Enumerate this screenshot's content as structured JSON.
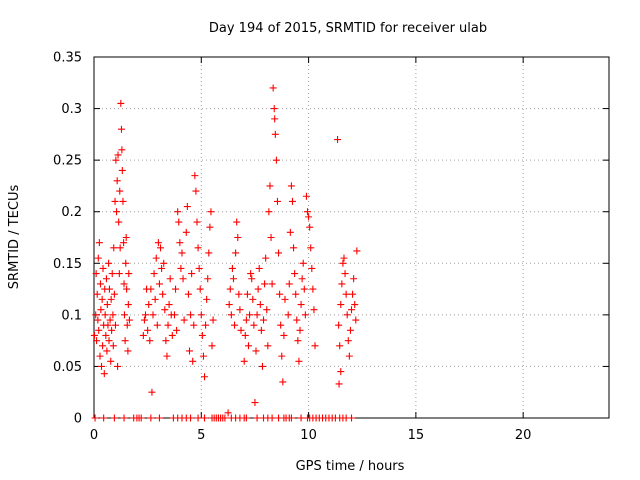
{
  "chart_data": {
    "type": "scatter",
    "title": "Day 194 of 2015, SRMTID for receiver ulab",
    "xlabel": "GPS time / hours",
    "ylabel": "SRMTID / TECUs",
    "xlim": [
      0,
      24
    ],
    "ylim": [
      0,
      0.35
    ],
    "xticks": [
      0,
      5,
      10,
      15,
      20
    ],
    "yticks": [
      0,
      0.05,
      0.1,
      0.15,
      0.2,
      0.25,
      0.3,
      0.35
    ],
    "xtick_labels": [
      "0",
      "5",
      "10",
      "15",
      "20"
    ],
    "ytick_labels": [
      "0",
      "0.05",
      "0.1",
      "0.15",
      "0.2",
      "0.25",
      "0.3",
      "0.35"
    ],
    "grid": true,
    "marker": "+",
    "color": "#ff0000",
    "series": [
      {
        "name": "SRMTID",
        "points": [
          [
            0.02,
            0.08
          ],
          [
            0.05,
            0.0
          ],
          [
            0.08,
            0.1
          ],
          [
            0.1,
            0.14
          ],
          [
            0.12,
            0.075
          ],
          [
            0.15,
            0.12
          ],
          [
            0.18,
            0.095
          ],
          [
            0.2,
            0.155
          ],
          [
            0.22,
            0.085
          ],
          [
            0.25,
            0.17
          ],
          [
            0.28,
            0.06
          ],
          [
            0.3,
            0.13
          ],
          [
            0.32,
            0.105
          ],
          [
            0.35,
            0.05
          ],
          [
            0.38,
            0.115
          ],
          [
            0.4,
            0.07
          ],
          [
            0.42,
            0.145
          ],
          [
            0.45,
            0.09
          ],
          [
            0.48,
            0.043
          ],
          [
            0.5,
            0.125
          ],
          [
            0.52,
            0.1
          ],
          [
            0.55,
            0.08
          ],
          [
            0.58,
            0.135
          ],
          [
            0.6,
            0.065
          ],
          [
            0.62,
            0.11
          ],
          [
            0.65,
            0.09
          ],
          [
            0.68,
            0.15
          ],
          [
            0.7,
            0.075
          ],
          [
            0.72,
            0.125
          ],
          [
            0.75,
            0.095
          ],
          [
            0.78,
            0.055
          ],
          [
            0.8,
            0.115
          ],
          [
            0.82,
            0.085
          ],
          [
            0.85,
            0.14
          ],
          [
            0.88,
            0.1
          ],
          [
            0.9,
            0.07
          ],
          [
            0.92,
            0.165
          ],
          [
            0.95,
            0.12
          ],
          [
            0.98,
            0.21
          ],
          [
            1.0,
            0.09
          ],
          [
            1.02,
            0.25
          ],
          [
            1.05,
            0.2
          ],
          [
            1.08,
            0.23
          ],
          [
            1.1,
            0.05
          ],
          [
            1.12,
            0.255
          ],
          [
            1.15,
            0.19
          ],
          [
            1.18,
            0.14
          ],
          [
            1.2,
            0.22
          ],
          [
            1.22,
            0.165
          ],
          [
            1.25,
            0.305
          ],
          [
            1.28,
            0.28
          ],
          [
            1.3,
            0.26
          ],
          [
            1.32,
            0.24
          ],
          [
            1.35,
            0.21
          ],
          [
            1.38,
            0.17
          ],
          [
            1.4,
            0.13
          ],
          [
            1.42,
            0.1
          ],
          [
            1.45,
            0.075
          ],
          [
            1.48,
            0.15
          ],
          [
            1.5,
            0.175
          ],
          [
            1.52,
            0.125
          ],
          [
            1.55,
            0.09
          ],
          [
            1.58,
            0.065
          ],
          [
            1.6,
            0.11
          ],
          [
            1.62,
            0.14
          ],
          [
            1.65,
            0.095
          ],
          [
            0.45,
            0.0
          ],
          [
            0.95,
            0.0
          ],
          [
            1.4,
            0.0
          ],
          [
            1.85,
            0.0
          ],
          [
            2.0,
            0.0
          ],
          [
            2.1,
            0.0
          ],
          [
            2.2,
            0.0
          ],
          [
            2.3,
            0.08
          ],
          [
            2.35,
            0.095
          ],
          [
            2.4,
            0.1
          ],
          [
            2.45,
            0.125
          ],
          [
            2.5,
            0.085
          ],
          [
            2.55,
            0.11
          ],
          [
            2.6,
            0.075
          ],
          [
            2.65,
            0.125
          ],
          [
            2.7,
            0.025
          ],
          [
            2.75,
            0.1
          ],
          [
            2.8,
            0.14
          ],
          [
            2.85,
            0.115
          ],
          [
            2.9,
            0.155
          ],
          [
            2.95,
            0.09
          ],
          [
            3.0,
            0.17
          ],
          [
            3.05,
            0.13
          ],
          [
            3.1,
            0.165
          ],
          [
            3.15,
            0.145
          ],
          [
            3.2,
            0.12
          ],
          [
            3.25,
            0.15
          ],
          [
            3.3,
            0.105
          ],
          [
            3.35,
            0.075
          ],
          [
            3.4,
            0.06
          ],
          [
            3.45,
            0.09
          ],
          [
            3.5,
            0.11
          ],
          [
            3.55,
            0.135
          ],
          [
            3.6,
            0.1
          ],
          [
            3.65,
            0.08
          ],
          [
            2.65,
            0.0
          ],
          [
            3.05,
            0.0
          ],
          [
            3.75,
            0.1
          ],
          [
            3.8,
            0.125
          ],
          [
            3.85,
            0.085
          ],
          [
            3.9,
            0.2
          ],
          [
            3.95,
            0.19
          ],
          [
            4.0,
            0.17
          ],
          [
            4.05,
            0.145
          ],
          [
            4.1,
            0.16
          ],
          [
            4.15,
            0.135
          ],
          [
            4.2,
            0.095
          ],
          [
            4.3,
            0.18
          ],
          [
            4.35,
            0.205
          ],
          [
            4.4,
            0.12
          ],
          [
            4.45,
            0.065
          ],
          [
            4.5,
            0.1
          ],
          [
            4.55,
            0.14
          ],
          [
            4.6,
            0.055
          ],
          [
            4.65,
            0.09
          ],
          [
            4.7,
            0.235
          ],
          [
            4.75,
            0.22
          ],
          [
            4.8,
            0.19
          ],
          [
            4.85,
            0.165
          ],
          [
            4.9,
            0.145
          ],
          [
            4.95,
            0.125
          ],
          [
            5.0,
            0.1
          ],
          [
            5.05,
            0.08
          ],
          [
            5.1,
            0.06
          ],
          [
            5.15,
            0.04
          ],
          [
            5.2,
            0.09
          ],
          [
            5.25,
            0.115
          ],
          [
            5.3,
            0.135
          ],
          [
            5.35,
            0.16
          ],
          [
            5.4,
            0.185
          ],
          [
            5.45,
            0.2
          ],
          [
            5.5,
            0.07
          ],
          [
            5.55,
            0.095
          ],
          [
            3.7,
            0.0
          ],
          [
            3.9,
            0.0
          ],
          [
            4.1,
            0.0
          ],
          [
            4.3,
            0.0
          ],
          [
            4.5,
            0.0
          ],
          [
            4.85,
            0.0
          ],
          [
            5.15,
            0.0
          ],
          [
            5.5,
            0.0
          ],
          [
            5.6,
            0.0
          ],
          [
            5.7,
            0.0
          ],
          [
            5.8,
            0.0
          ],
          [
            5.9,
            0.0
          ],
          [
            6.0,
            0.0
          ],
          [
            6.1,
            0.0
          ],
          [
            6.25,
            0.005
          ],
          [
            6.3,
            0.11
          ],
          [
            6.35,
            0.125
          ],
          [
            6.4,
            0.1
          ],
          [
            6.45,
            0.145
          ],
          [
            6.5,
            0.135
          ],
          [
            6.55,
            0.09
          ],
          [
            6.6,
            0.16
          ],
          [
            6.65,
            0.19
          ],
          [
            6.7,
            0.175
          ],
          [
            6.75,
            0.12
          ],
          [
            6.8,
            0.105
          ],
          [
            6.85,
            0.085
          ],
          [
            6.4,
            0.0
          ],
          [
            6.6,
            0.0
          ],
          [
            6.8,
            0.0
          ],
          [
            7.0,
            0.0
          ],
          [
            7.1,
            0.0
          ],
          [
            7.0,
            0.055
          ],
          [
            7.05,
            0.08
          ],
          [
            7.1,
            0.095
          ],
          [
            7.15,
            0.12
          ],
          [
            7.2,
            0.07
          ],
          [
            7.25,
            0.1
          ],
          [
            7.3,
            0.14
          ],
          [
            7.35,
            0.135
          ],
          [
            7.4,
            0.115
          ],
          [
            7.45,
            0.09
          ],
          [
            7.5,
            0.015
          ],
          [
            7.55,
            0.065
          ],
          [
            7.6,
            0.1
          ],
          [
            7.65,
            0.125
          ],
          [
            7.7,
            0.145
          ],
          [
            7.75,
            0.11
          ],
          [
            7.8,
            0.085
          ],
          [
            7.85,
            0.05
          ],
          [
            7.9,
            0.095
          ],
          [
            7.95,
            0.13
          ],
          [
            8.0,
            0.155
          ],
          [
            8.05,
            0.105
          ],
          [
            8.1,
            0.07
          ],
          [
            8.15,
            0.2
          ],
          [
            8.2,
            0.225
          ],
          [
            8.25,
            0.175
          ],
          [
            8.3,
            0.13
          ],
          [
            8.35,
            0.32
          ],
          [
            8.4,
            0.3
          ],
          [
            8.42,
            0.29
          ],
          [
            8.45,
            0.275
          ],
          [
            8.5,
            0.25
          ],
          [
            8.55,
            0.21
          ],
          [
            8.6,
            0.16
          ],
          [
            8.65,
            0.12
          ],
          [
            8.7,
            0.09
          ],
          [
            8.75,
            0.06
          ],
          [
            8.8,
            0.035
          ],
          [
            8.85,
            0.08
          ],
          [
            8.9,
            0.115
          ],
          [
            7.6,
            0.0
          ],
          [
            7.9,
            0.0
          ],
          [
            8.1,
            0.0
          ],
          [
            8.3,
            0.0
          ],
          [
            8.6,
            0.0
          ],
          [
            8.85,
            0.0
          ],
          [
            8.95,
            0.0
          ],
          [
            9.1,
            0.0
          ],
          [
            9.2,
            0.0
          ],
          [
            9.05,
            0.1
          ],
          [
            9.1,
            0.13
          ],
          [
            9.15,
            0.18
          ],
          [
            9.2,
            0.225
          ],
          [
            9.25,
            0.21
          ],
          [
            9.3,
            0.165
          ],
          [
            9.35,
            0.14
          ],
          [
            9.4,
            0.12
          ],
          [
            9.45,
            0.095
          ],
          [
            9.5,
            0.075
          ],
          [
            9.55,
            0.055
          ],
          [
            9.6,
            0.085
          ],
          [
            9.65,
            0.11
          ],
          [
            9.7,
            0.135
          ],
          [
            9.75,
            0.15
          ],
          [
            9.8,
            0.125
          ],
          [
            9.85,
            0.1
          ],
          [
            9.9,
            0.215
          ],
          [
            9.95,
            0.2
          ],
          [
            10.0,
            0.195
          ],
          [
            10.05,
            0.185
          ],
          [
            10.1,
            0.165
          ],
          [
            10.15,
            0.145
          ],
          [
            10.2,
            0.125
          ],
          [
            10.25,
            0.105
          ],
          [
            10.3,
            0.07
          ],
          [
            9.65,
            0.0
          ],
          [
            9.95,
            0.0
          ],
          [
            10.05,
            0.0
          ],
          [
            10.2,
            0.0
          ],
          [
            10.35,
            0.0
          ],
          [
            10.5,
            0.0
          ],
          [
            10.65,
            0.0
          ],
          [
            10.8,
            0.0
          ],
          [
            10.95,
            0.0
          ],
          [
            11.1,
            0.0
          ],
          [
            11.25,
            0.0
          ],
          [
            11.45,
            0.0
          ],
          [
            11.6,
            0.0
          ],
          [
            11.75,
            0.0
          ],
          [
            11.35,
            0.27
          ],
          [
            11.4,
            0.09
          ],
          [
            11.45,
            0.07
          ],
          [
            11.5,
            0.11
          ],
          [
            11.55,
            0.13
          ],
          [
            11.6,
            0.15
          ],
          [
            11.65,
            0.155
          ],
          [
            11.7,
            0.14
          ],
          [
            11.75,
            0.12
          ],
          [
            11.8,
            0.1
          ],
          [
            11.85,
            0.075
          ],
          [
            11.9,
            0.06
          ],
          [
            11.42,
            0.033
          ],
          [
            11.95,
            0.085
          ],
          [
            12.0,
            0.105
          ],
          [
            12.05,
            0.12
          ],
          [
            12.1,
            0.135
          ],
          [
            12.15,
            0.11
          ],
          [
            12.2,
            0.095
          ],
          [
            12.25,
            0.162
          ],
          [
            11.5,
            0.045
          ],
          [
            12.0,
            0.0
          ]
        ]
      }
    ]
  }
}
